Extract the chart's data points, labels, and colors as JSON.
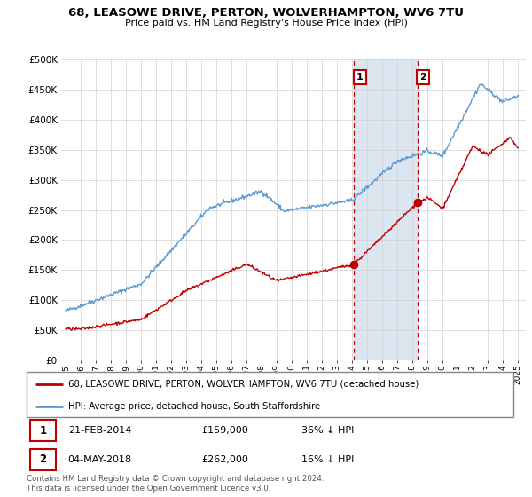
{
  "title": "68, LEASOWE DRIVE, PERTON, WOLVERHAMPTON, WV6 7TU",
  "subtitle": "Price paid vs. HM Land Registry's House Price Index (HPI)",
  "legend_line1": "68, LEASOWE DRIVE, PERTON, WOLVERHAMPTON, WV6 7TU (detached house)",
  "legend_line2": "HPI: Average price, detached house, South Staffordshire",
  "note": "Contains HM Land Registry data © Crown copyright and database right 2024.\nThis data is licensed under the Open Government Licence v3.0.",
  "table": [
    {
      "num": "1",
      "date": "21-FEB-2014",
      "price": "£159,000",
      "pct": "36% ↓ HPI"
    },
    {
      "num": "2",
      "date": "04-MAY-2018",
      "price": "£262,000",
      "pct": "16% ↓ HPI"
    }
  ],
  "point1_x": 2014.13,
  "point1_y": 159000,
  "point2_x": 2018.34,
  "point2_y": 262000,
  "hpi_color": "#5b9bd5",
  "price_color": "#c00000",
  "shade_color": "#dce6f1",
  "grid_color": "#d0d0d0",
  "bg_color": "#ffffff",
  "ylim": [
    0,
    500000
  ],
  "xlim_start": 1994.7,
  "xlim_end": 2025.5
}
